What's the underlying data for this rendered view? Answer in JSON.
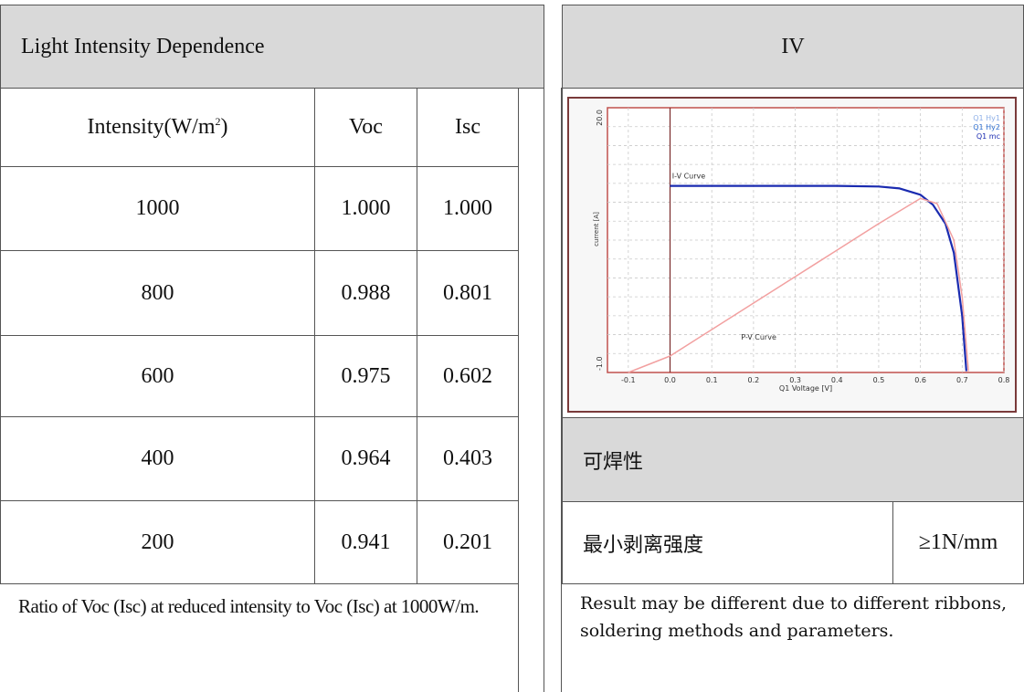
{
  "left_table": {
    "title": "Light Intensity Dependence",
    "headers": {
      "intensity": "Intensity(W/m",
      "intensity_sup": "2",
      "intensity_end": ")",
      "voc": "Voc",
      "isc": "Isc"
    },
    "rows": [
      {
        "intensity": "1000",
        "voc": "1.000",
        "isc": "1.000"
      },
      {
        "intensity": "800",
        "voc": "0.988",
        "isc": "0.801"
      },
      {
        "intensity": "600",
        "voc": "0.975",
        "isc": "0.602"
      },
      {
        "intensity": "400",
        "voc": "0.964",
        "isc": "0.403"
      },
      {
        "intensity": "200",
        "voc": "0.941",
        "isc": "0.201"
      }
    ],
    "note": "Ratio of Voc (Isc) at reduced intensity to Voc (Isc) at 1000W/m."
  },
  "right_table": {
    "iv_title": "IV",
    "solder_title": "可焊性",
    "peel_label": "最小剥离强度",
    "peel_value": "≥1N/mm",
    "note": "Result may be different due to different ribbons, soldering methods and parameters."
  },
  "chart_data": {
    "type": "line",
    "xlabel": "Q1 Voltage [V]",
    "ylabel": "current [A]",
    "xlim": [
      -0.15,
      0.8
    ],
    "ylim": [
      -1.0,
      20.0
    ],
    "x_ticks": [
      "-0.1",
      "0.0",
      "0.1",
      "0.2",
      "0.3",
      "0.4",
      "0.5",
      "0.6",
      "0.7",
      "0.8"
    ],
    "y_ticks": [
      "20.0",
      "-1.0"
    ],
    "legend": [
      "Q1 Hy1",
      "Q1 Hy2",
      "Q1 mc"
    ],
    "legend_position": "top-right",
    "annotations": [
      "I-V Curve",
      "P-V Curve"
    ],
    "grid": true,
    "colors": {
      "iv": "#1a2bb0",
      "pv": "#f2a0a0",
      "axis": "#c0504d",
      "legend1": "#8fb0e8",
      "legend2": "#2f6fd0",
      "legend3": "#1a2bb0"
    },
    "series": [
      {
        "name": "Q1 Hy2",
        "x": [
          0.0,
          0.1,
          0.2,
          0.3,
          0.4,
          0.5,
          0.55,
          0.6,
          0.63,
          0.66,
          0.68,
          0.7,
          0.71
        ],
        "y": [
          13.8,
          13.8,
          13.8,
          13.8,
          13.8,
          13.75,
          13.6,
          13.1,
          12.3,
          10.8,
          8.5,
          3.5,
          -0.9
        ]
      },
      {
        "name": "Q1 Hy1",
        "x": [
          -0.1,
          0.0,
          0.1,
          0.2,
          0.3,
          0.4,
          0.5,
          0.6,
          0.64,
          0.68,
          0.7,
          0.715
        ],
        "y": [
          -1.0,
          0.3,
          2.4,
          4.5,
          6.6,
          8.7,
          10.8,
          12.8,
          12.4,
          9.5,
          5.0,
          -0.9
        ]
      }
    ]
  }
}
